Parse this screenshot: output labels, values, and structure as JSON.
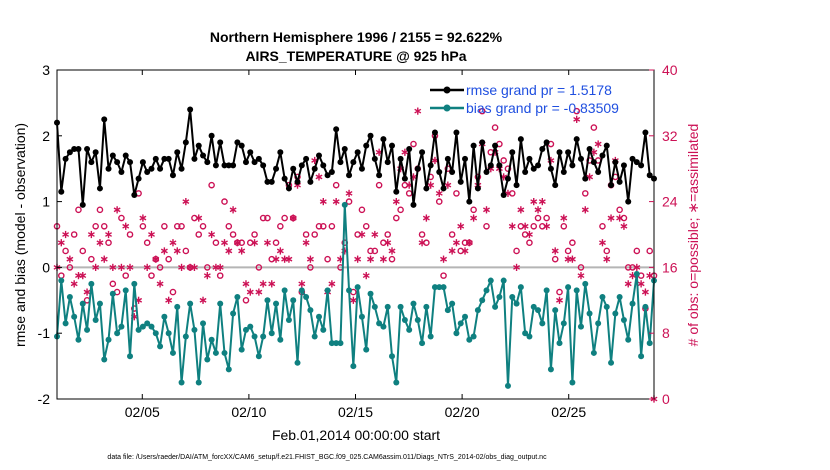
{
  "colors": {
    "rmse": "#000000",
    "bias": "#0f8080",
    "obs": "#cc1155",
    "legend_text": "#1f4fe0",
    "zero_line": "#b5b5b5"
  },
  "chart_data": {
    "type": "line",
    "title_line1": "Northern Hemisphere 1996 / 2155 = 92.622%",
    "title_line2": "AIRS_TEMPERATURE @ 925 hPa",
    "xlabel": "Feb.01,2014 00:00:00 start",
    "ylabel_left": "rmse and bias (model - observation)",
    "ylabel_right": "# of obs: o=possible; ∗=assimilated",
    "xlim": [
      1,
      29
    ],
    "ylim_left": [
      -2,
      3
    ],
    "ylim_right": [
      0,
      40
    ],
    "x_ticks": [
      5,
      10,
      15,
      20,
      25
    ],
    "x_tick_labels": [
      "02/05",
      "02/10",
      "02/15",
      "02/20",
      "02/25"
    ],
    "y_ticks_left": [
      -2,
      -1,
      0,
      1,
      2,
      3
    ],
    "y_tick_labels_left": [
      "-2",
      "-1",
      "0",
      "1",
      "2",
      "3"
    ],
    "y_ticks_right": [
      0,
      8,
      16,
      24,
      32,
      40
    ],
    "y_tick_labels_right": [
      "0",
      "8",
      "16",
      "24",
      "32",
      "40"
    ],
    "legend": [
      {
        "name": "rmse grand pr = 1.5178",
        "series": "rmse"
      },
      {
        "name": "bias grand pr = -0.83509",
        "series": "bias"
      }
    ],
    "series": [
      {
        "name": "rmse",
        "values": [
          2.2,
          1.15,
          1.65,
          1.75,
          1.8,
          1.8,
          0.95,
          1.8,
          1.6,
          1.75,
          1.2,
          2.25,
          1.5,
          1.7,
          1.6,
          1.45,
          1.7,
          1.6,
          1.1,
          1.35,
          1.6,
          1.45,
          1.5,
          1.65,
          1.5,
          1.65,
          1.65,
          1.4,
          1.75,
          1.5,
          1.9,
          2.4,
          1.65,
          1.85,
          1.7,
          1.6,
          2.0,
          1.55,
          1.9,
          1.55,
          1.55,
          1.55,
          1.9,
          1.85,
          1.6,
          1.75,
          1.6,
          1.65,
          1.55,
          1.3,
          1.3,
          1.5,
          1.75,
          1.35,
          1.2,
          1.5,
          1.3,
          1.55,
          1.65,
          1.3,
          1.5,
          1.7,
          1.55,
          1.4,
          1.45,
          2.1,
          1.6,
          1.8,
          1.4,
          1.6,
          1.75,
          1.5,
          1.85,
          2.0,
          1.65,
          1.4,
          1.95,
          1.6,
          1.85,
          1.15,
          1.65,
          1.35,
          1.8,
          0.95,
          1.5,
          1.75,
          1.2,
          1.55,
          2.05,
          1.45,
          1.2,
          1.65,
          1.45,
          2.05,
          1.3,
          1.65,
          1.0,
          1.85,
          1.2,
          1.9,
          1.45,
          1.55,
          1.85,
          1.55,
          1.1,
          1.35,
          1.75,
          1.25,
          1.95,
          1.45,
          1.65,
          1.5,
          1.55,
          1.8,
          1.9,
          1.5,
          1.25,
          1.75,
          1.45,
          1.75,
          1.55,
          1.95,
          1.65,
          1.35,
          1.8,
          1.6,
          1.45,
          1.7,
          1.85,
          1.25,
          1.6,
          1.3,
          1.55,
          1.0,
          1.65,
          1.6,
          1.55,
          2.05,
          1.4,
          1.35
        ]
      },
      {
        "name": "bias",
        "values": [
          -1.05,
          -0.2,
          -0.85,
          -0.45,
          -0.75,
          -1.1,
          -0.55,
          -0.95,
          -0.25,
          -0.8,
          -0.55,
          -1.4,
          -1.1,
          -0.4,
          -1.0,
          -0.9,
          -0.35,
          -1.35,
          -0.25,
          -0.95,
          -0.9,
          -0.85,
          -0.9,
          -1.0,
          -1.2,
          -0.75,
          -1.0,
          -1.3,
          -0.6,
          -1.75,
          -1.05,
          -0.55,
          -0.95,
          -1.75,
          -0.85,
          -1.4,
          -1.1,
          -1.3,
          -0.55,
          -1.3,
          -1.55,
          -0.7,
          -0.45,
          -1.25,
          -0.95,
          -0.9,
          -1.05,
          -1.35,
          -1.05,
          -0.5,
          -1.0,
          -0.55,
          -1.1,
          -0.35,
          -0.8,
          -0.5,
          -1.45,
          -0.35,
          -0.45,
          -0.65,
          -1.05,
          -0.75,
          -0.95,
          -0.35,
          -1.15,
          -1.15,
          -1.15,
          0.95,
          -0.35,
          -1.5,
          -0.3,
          -0.75,
          -1.25,
          -0.4,
          -0.6,
          -0.85,
          -0.9,
          -0.6,
          -1.35,
          -1.75,
          -0.6,
          -0.8,
          -0.95,
          -0.55,
          -0.8,
          -1.15,
          -0.6,
          -1.05,
          -0.3,
          -0.3,
          -0.3,
          -0.65,
          -0.55,
          -1.0,
          -0.85,
          -0.75,
          -1.1,
          -1.05,
          -0.65,
          -0.5,
          -0.35,
          -0.2,
          -0.6,
          -0.45,
          -0.2,
          -1.8,
          -0.45,
          -0.55,
          -0.3,
          -1.0,
          -1.05,
          -0.6,
          -0.65,
          -0.85,
          -0.35,
          -1.55,
          -0.65,
          -1.15,
          -0.85,
          -0.3,
          -1.75,
          -0.35,
          -0.9,
          -0.25,
          -0.7,
          -1.3,
          -0.85,
          -0.45,
          -0.6,
          -1.45,
          -0.7,
          -0.45,
          -0.8,
          -1.1,
          -0.55,
          -0.1,
          -1.35,
          -0.6,
          -1.15,
          -0.2
        ]
      },
      {
        "name": "obs_possible",
        "values": [
          21,
          15,
          18,
          16,
          20,
          23,
          18,
          12,
          17,
          21,
          23,
          21,
          19,
          14,
          13,
          22,
          15,
          20,
          11,
          25,
          21,
          19,
          15,
          17,
          16,
          21,
          17,
          13,
          21,
          21,
          18,
          16,
          22,
          20,
          21,
          16,
          26,
          19,
          15,
          24,
          21,
          20,
          19,
          19,
          12,
          19,
          20,
          16,
          22,
          22,
          17,
          19,
          21,
          22,
          26,
          22,
          27,
          13,
          20,
          16,
          20,
          21,
          21,
          17,
          21,
          26,
          16,
          19,
          24,
          13,
          20,
          23,
          21,
          18,
          18,
          26,
          19,
          20,
          17,
          22,
          23,
          26,
          25,
          31,
          28,
          20,
          19,
          27,
          32,
          24,
          15,
          28,
          20,
          25,
          18,
          19,
          19,
          23,
          27,
          35,
          21,
          30,
          33,
          31,
          29,
          28,
          25,
          18,
          21,
          20,
          19,
          21,
          22,
          21,
          22,
          31,
          17,
          13,
          21,
          18,
          19,
          35,
          16,
          25,
          29,
          33,
          29,
          21,
          18,
          26,
          27,
          23,
          22,
          16,
          16,
          18,
          15,
          11,
          18,
          15
        ]
      },
      {
        "name": "obs_assimilated",
        "values": [
          16,
          19,
          20,
          17,
          14,
          15,
          15,
          13,
          20,
          16,
          19,
          17,
          20,
          16,
          23,
          16,
          21,
          16,
          10,
          12,
          22,
          16,
          20,
          17,
          14,
          18,
          12,
          19,
          18,
          16,
          24,
          16,
          16,
          22,
          12,
          15,
          20,
          16,
          16,
          19,
          18,
          23,
          19,
          18,
          14,
          13,
          19,
          13,
          14,
          19,
          14,
          17,
          18,
          17,
          17,
          22,
          26,
          14,
          19,
          17,
          29,
          27,
          24,
          13,
          14,
          24,
          17,
          18,
          25,
          12,
          17,
          20,
          15,
          17,
          20,
          30,
          17,
          19,
          18,
          24,
          28,
          30,
          26,
          27,
          35,
          19,
          22,
          26,
          29,
          25,
          17,
          26,
          18,
          19,
          21,
          18,
          19,
          22,
          26,
          31,
          23,
          28,
          30,
          28,
          27,
          25,
          21,
          16,
          23,
          21,
          20,
          24,
          23,
          24,
          21,
          29,
          18,
          12,
          22,
          17,
          17,
          34,
          15,
          23,
          27,
          30,
          31,
          19,
          17,
          22,
          29,
          22,
          21,
          14,
          15,
          16,
          14,
          13,
          15,
          0
        ]
      }
    ],
    "footnote": "data file: /Users/raeder/DAI/ATM_forcXX/CAM6_setup/f.e21.FHIST_BGC.f09_025.CAM6assim.011/Diags_NTrS_2014-02/obs_diag_output.nc"
  }
}
